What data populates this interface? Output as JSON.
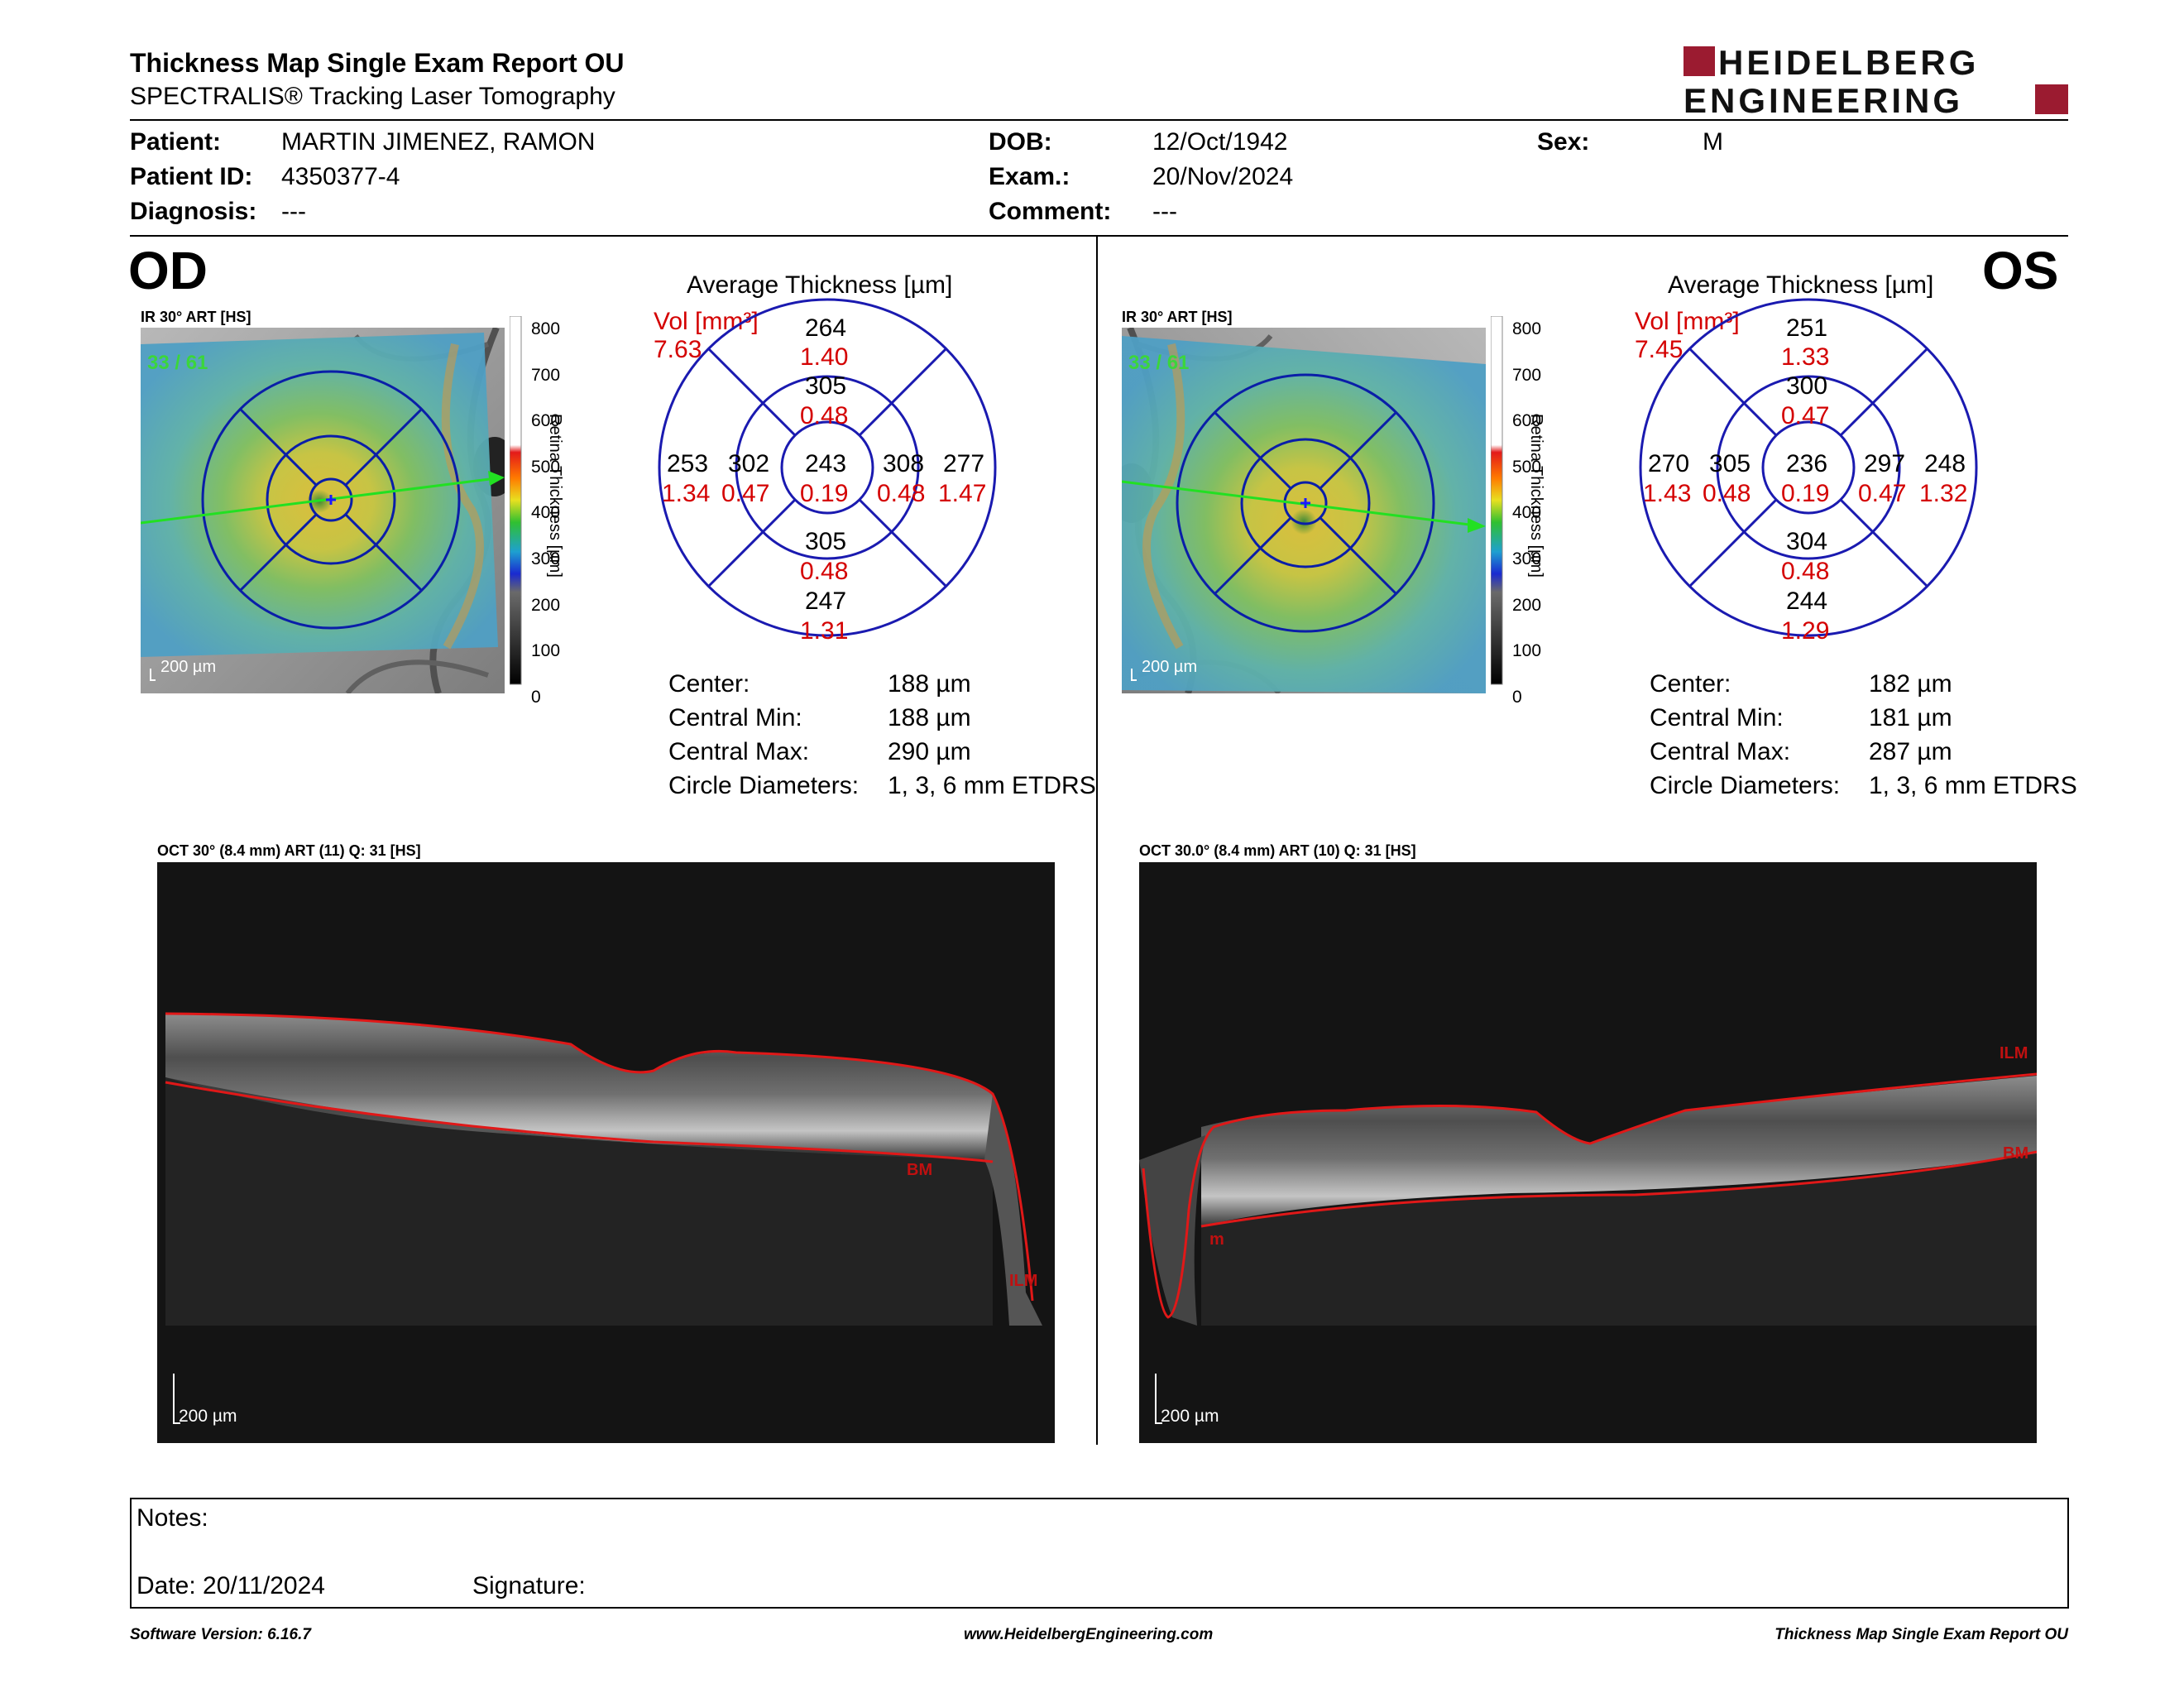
{
  "header": {
    "title": "Thickness Map Single Exam Report OU",
    "subtitle": "SPECTRALIS® Tracking Laser Tomography",
    "logo_line1": "HEIDELBERG",
    "logo_line2": "ENGINEERING"
  },
  "patient": {
    "patient_label": "Patient:",
    "patient_value": "MARTIN JIMENEZ, RAMON",
    "id_label": "Patient ID:",
    "id_value": "4350377-4",
    "diag_label": "Diagnosis:",
    "diag_value": "---",
    "dob_label": "DOB:",
    "dob_value": "12/Oct/1942",
    "exam_label": "Exam.:",
    "exam_value": "20/Nov/2024",
    "comment_label": "Comment:",
    "comment_value": "---",
    "sex_label": "Sex:",
    "sex_value": "M"
  },
  "od": {
    "eye": "OD",
    "ir_label": "IR 30° ART [HS]",
    "frames": "33 / 61",
    "scale_label": "200 µm",
    "colorbar_ticks": [
      "800",
      "700",
      "600",
      "500",
      "400",
      "300",
      "200",
      "100",
      "0"
    ],
    "colorbar_title": "Retina Thickness [µm]",
    "avg_title": "Average Thickness [µm]",
    "vol_label": "Vol [mm³]",
    "vol_value": "7.63",
    "grid": {
      "sup_outer": "264",
      "sup_outer_vol": "1.40",
      "sup_inner": "305",
      "sup_inner_vol": "0.48",
      "temp_outer": "253",
      "temp_outer_vol": "1.34",
      "temp_inner": "302",
      "temp_inner_vol": "0.47",
      "center": "243",
      "center_vol": "0.19",
      "nas_inner": "308",
      "nas_inner_vol": "0.48",
      "nas_outer": "277",
      "nas_outer_vol": "1.47",
      "inf_inner": "305",
      "inf_inner_vol": "0.48",
      "inf_outer": "247",
      "inf_outer_vol": "1.31"
    },
    "stats": {
      "center_label": "Center:",
      "center_value": "188 µm",
      "min_label": "Central Min:",
      "min_value": "188 µm",
      "max_label": "Central Max:",
      "max_value": "290 µm",
      "diam_label": "Circle Diameters:",
      "diam_value": "1, 3, 6 mm ETDRS"
    },
    "oct_label": "OCT 30° (8.4 mm) ART (11) Q: 31 [HS]",
    "oct_scale": "200 µm",
    "bm_label": "BM",
    "ilm_label": "ILM"
  },
  "os": {
    "eye": "OS",
    "ir_label": "IR 30° ART [HS]",
    "frames": "33 / 61",
    "scale_label": "200 µm",
    "colorbar_ticks": [
      "800",
      "700",
      "600",
      "500",
      "400",
      "300",
      "200",
      "100",
      "0"
    ],
    "colorbar_title": "Retina Thickness [µm]",
    "avg_title": "Average Thickness [µm]",
    "vol_label": "Vol [mm³]",
    "vol_value": "7.45",
    "grid": {
      "sup_outer": "251",
      "sup_outer_vol": "1.33",
      "sup_inner": "300",
      "sup_inner_vol": "0.47",
      "temp_outer": "270",
      "temp_outer_vol": "1.43",
      "temp_inner": "305",
      "temp_inner_vol": "0.48",
      "center": "236",
      "center_vol": "0.19",
      "nas_inner": "297",
      "nas_inner_vol": "0.47",
      "nas_outer": "248",
      "nas_outer_vol": "1.32",
      "inf_inner": "304",
      "inf_inner_vol": "0.48",
      "inf_outer": "244",
      "inf_outer_vol": "1.29"
    },
    "stats": {
      "center_label": "Center:",
      "center_value": "182 µm",
      "min_label": "Central Min:",
      "min_value": "181 µm",
      "max_label": "Central Max:",
      "max_value": "287 µm",
      "diam_label": "Circle Diameters:",
      "diam_value": "1, 3, 6 mm ETDRS"
    },
    "oct_label": "OCT 30.0° (8.4 mm) ART (10) Q: 31 [HS]",
    "oct_scale": "200 µm",
    "ilm_label": "ILM",
    "bm_label": "BM",
    "m_label": "m"
  },
  "notes": {
    "notes_label": "Notes:",
    "date_label": "Date: 20/11/2024",
    "signature_label": "Signature:"
  },
  "footer": {
    "software": "Software Version: 6.16.7",
    "website": "www.HeidelbergEngineering.com",
    "report": "Thickness Map Single Exam Report OU"
  }
}
